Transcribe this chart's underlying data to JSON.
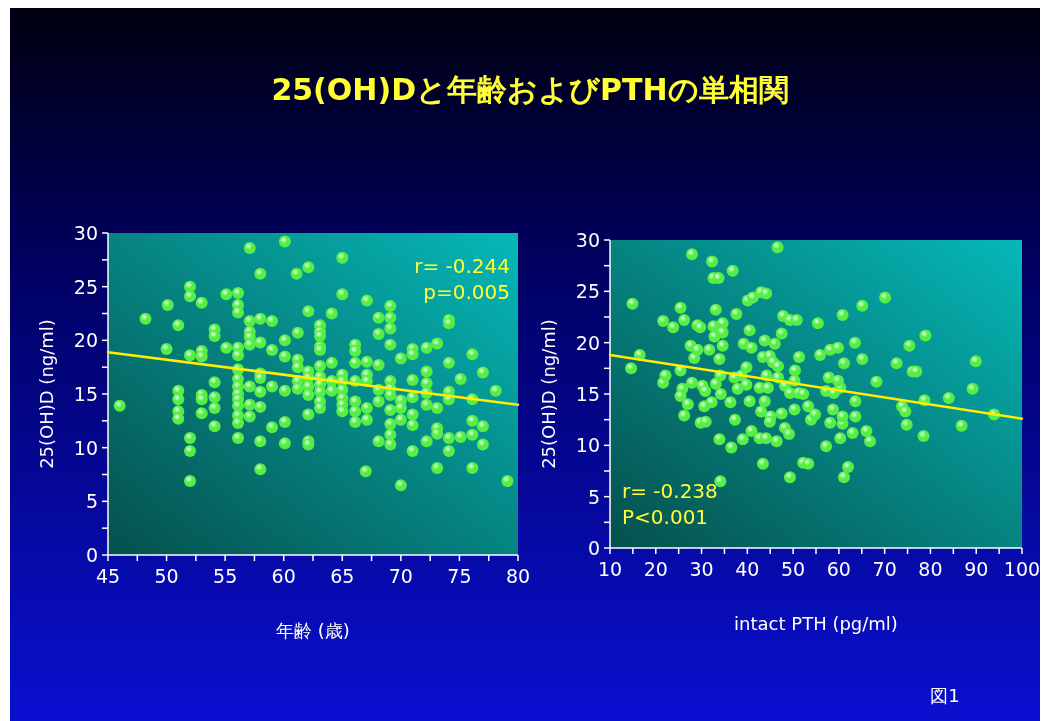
{
  "chart_data": [
    {
      "type": "scatter",
      "title": "25(OH)Dと年齢およびPTHの単相関",
      "xlabel": "年齢 (歳)",
      "ylabel": "25(OH)D (ng/ml)",
      "xlim": [
        45,
        80
      ],
      "xticks": [
        45,
        {
          "value": 47.5,
          "label": null
        },
        50,
        {
          "value": 52.5,
          "label": null
        },
        55,
        {
          "value": 57.5,
          "label": null
        },
        60,
        {
          "value": 62.5,
          "label": null
        },
        65,
        {
          "value": 67.5,
          "label": null
        },
        70,
        {
          "value": 72.5,
          "label": null
        },
        75,
        {
          "value": 77.5,
          "label": null
        },
        80
      ],
      "ylim": [
        0,
        30
      ],
      "yticks": [
        0,
        {
          "value": 2.5,
          "label": null
        },
        5,
        {
          "value": 7.5,
          "label": null
        },
        10,
        {
          "value": 12.5,
          "label": null
        },
        15,
        {
          "value": 17.5,
          "label": null
        },
        20,
        {
          "value": 22.5,
          "label": null
        },
        25,
        {
          "value": 27.5,
          "label": null
        },
        30
      ],
      "grid": false,
      "annotations": [
        "r= -0.244",
        "p=0.005"
      ],
      "series": [
        {
          "marker": "circle",
          "color": "#55ee44",
          "x": [
            46,
            48.2,
            50.1,
            50,
            51,
            51,
            51,
            51,
            51,
            52,
            52,
            52,
            52,
            52,
            52,
            53,
            53,
            53,
            53,
            53,
            53,
            54.1,
            54.1,
            54.1,
            54.1,
            54.1,
            54.1,
            55.1,
            55.1,
            56.1,
            56.1,
            56.1,
            56.1,
            56.1,
            56.1,
            56.1,
            56.1,
            56.1,
            56.1,
            56.1,
            56.1,
            56.1,
            56.1,
            57.1,
            57.1,
            57.1,
            57.1,
            57.1,
            57.1,
            57.1,
            57.1,
            58,
            58,
            58,
            58,
            58,
            58,
            58,
            58,
            58,
            59,
            59,
            59,
            59,
            60.1,
            60.1,
            60.1,
            60.1,
            60.1,
            60.1,
            61.1,
            61.2,
            61.2,
            61.2,
            61.2,
            61.2,
            62.1,
            62.1,
            62.1,
            62.1,
            62.1,
            62.1,
            62.1,
            62.1,
            62.1,
            63.1,
            63.1,
            63.1,
            63.1,
            63.1,
            63.1,
            63.1,
            63.1,
            63.1,
            63.1,
            63.1,
            64.1,
            64.1,
            64.1,
            64.1,
            65,
            65,
            65,
            65,
            65,
            65,
            65,
            65,
            66.1,
            66.1,
            66.1,
            66.1,
            66.1,
            66.1,
            66.1,
            67.1,
            67.1,
            67.1,
            67.1,
            67.1,
            67.1,
            67,
            68.1,
            68.1,
            68.1,
            68.1,
            68.1,
            68.1,
            69.1,
            69.1,
            69.1,
            69.1,
            69.1,
            69.1,
            69.1,
            69.1,
            69.1,
            69.1,
            69.1,
            70,
            70,
            70,
            70,
            70,
            71,
            71,
            71,
            71,
            71,
            71,
            71,
            72.2,
            72.2,
            72.2,
            72.2,
            72.2,
            72.2,
            73.1,
            73.1,
            73.1,
            73.1,
            73.1,
            74.1,
            74.1,
            74.1,
            74.1,
            74.1,
            74.1,
            74.1,
            75.1,
            75.1,
            76.1,
            76.1,
            76.1,
            76.1,
            76.1,
            77,
            77,
            77,
            78.1,
            79.1
          ],
          "values": [
            13.9,
            22.0,
            23.3,
            19.2,
            21.4,
            15.3,
            14.5,
            13.4,
            12.7,
            25.0,
            24.1,
            18.6,
            10.9,
            9.7,
            6.9,
            23.5,
            19.0,
            18.5,
            14.9,
            14.5,
            13.2,
            21.0,
            20.4,
            16.1,
            14.7,
            13.7,
            12.0,
            24.3,
            19.3,
            24.4,
            23.3,
            22.6,
            19.3,
            18.6,
            17.3,
            16.4,
            15.7,
            15.0,
            14.5,
            13.9,
            13.0,
            12.3,
            10.9,
            28.6,
            21.8,
            20.8,
            20.3,
            19.6,
            15.7,
            14.0,
            12.9,
            26.2,
            22.0,
            19.8,
            16.9,
            16.5,
            15.2,
            13.8,
            10.6,
            8.0,
            21.8,
            19.1,
            15.7,
            11.9,
            29.2,
            20.0,
            18.5,
            15.3,
            12.4,
            10.4,
            26.2,
            18.2,
            17.5,
            16.2,
            15.5,
            20.7,
            26.8,
            22.7,
            17.1,
            16.5,
            15.7,
            14.9,
            13.1,
            10.6,
            10.3,
            21.4,
            20.8,
            20.4,
            19.4,
            19.1,
            17.6,
            16.6,
            15.9,
            15.2,
            14.3,
            13.7,
            22.5,
            17.9,
            16.2,
            15.3,
            27.7,
            24.3,
            16.8,
            16.2,
            15.4,
            14.6,
            14.0,
            13.4,
            19.6,
            19.0,
            17.9,
            16.2,
            14.3,
            13.4,
            12.4,
            23.7,
            18.0,
            16.8,
            16.2,
            13.7,
            12.6,
            7.8,
            22.1,
            20.6,
            17.7,
            15.4,
            14.3,
            10.6,
            23.2,
            22.1,
            21.1,
            19.6,
            16.2,
            15.5,
            14.9,
            13.5,
            12.2,
            11.2,
            10.3,
            18.3,
            14.4,
            13.7,
            12.6,
            6.5,
            19.2,
            18.7,
            16.3,
            14.7,
            13.1,
            12.1,
            9.7,
            19.3,
            17.1,
            16.0,
            15.1,
            14.0,
            10.6,
            19.7,
            13.7,
            11.8,
            11.3,
            8.1,
            21.9,
            21.6,
            17.9,
            15.2,
            14.5,
            10.9,
            9.7,
            16.4,
            11.0,
            18.7,
            14.5,
            12.5,
            11.2,
            8.1,
            17.0,
            12.0,
            10.3,
            15.3,
            6.9
          ]
        },
        {
          "type": "line",
          "color": "#ffee00",
          "x": [
            45,
            80
          ],
          "values": [
            18.9,
            14.0
          ]
        }
      ]
    },
    {
      "type": "scatter",
      "xlabel": "intact PTH (pg/ml)",
      "ylabel": "25(OH)D (ng/ml)",
      "xlim": [
        10,
        100
      ],
      "xticks": [
        10,
        {
          "value": 15,
          "label": null
        },
        20,
        {
          "value": 25,
          "label": null
        },
        30,
        {
          "value": 35,
          "label": null
        },
        40,
        {
          "value": 45,
          "label": null
        },
        50,
        {
          "value": 55,
          "label": null
        },
        60,
        {
          "value": 65,
          "label": null
        },
        70,
        {
          "value": 75,
          "label": null
        },
        80,
        {
          "value": 85,
          "label": null
        },
        90,
        {
          "value": 95,
          "label": null
        },
        100
      ],
      "ylim": [
        0,
        30
      ],
      "yticks": [
        0,
        {
          "value": 2.5,
          "label": null
        },
        5,
        {
          "value": 7.5,
          "label": null
        },
        10,
        {
          "value": 12.5,
          "label": null
        },
        15,
        {
          "value": 17.5,
          "label": null
        },
        20,
        {
          "value": 22.5,
          "label": null
        },
        25,
        {
          "value": 27.5,
          "label": null
        },
        30
      ],
      "grid": false,
      "annotations": [
        "r= -0.238",
        "P<0.001",
        "図1"
      ],
      "series": [
        {
          "marker": "circle",
          "color": "#55ee44",
          "x": [
            14.9,
            14.6,
            16.5,
            21.6,
            21.6,
            23.8,
            22.1,
            25.4,
            26.2,
            25.4,
            25.8,
            25.4,
            27.0,
            26.2,
            27.9,
            27.6,
            28.4,
            29.1,
            29.7,
            29.1,
            27.9,
            30.2,
            30.8,
            30.6,
            29.8,
            30.9,
            32.2,
            32.3,
            32.6,
            33.7,
            33.1,
            32.6,
            34.6,
            32.8,
            34.6,
            34.6,
            31.7,
            33.9,
            33.1,
            34.1,
            34.2,
            36.3,
            33.9,
            34.1,
            36.8,
            37.6,
            36.5,
            37.3,
            37.2,
            37.9,
            38.7,
            39.0,
            39.2,
            39.8,
            40.1,
            41.2,
            40.5,
            40.9,
            40.5,
            40.9,
            39.8,
            43.0,
            44.1,
            43.8,
            43.4,
            42.7,
            43.8,
            43.0,
            42.7,
            44.1,
            43.4,
            44.2,
            44.5,
            46.6,
            46.0,
            44.9,
            45.6,
            46.7,
            45.1,
            44.9,
            46.4,
            46.7,
            47.5,
            47.8,
            47.5,
            49.3,
            50.8,
            48.2,
            48.2,
            49.1,
            49.3,
            49.3,
            50.3,
            50.4,
            51.3,
            51.2,
            50.3,
            52.2,
            53.3,
            53.9,
            54.8,
            52.2,
            53.3,
            55.4,
            55.9,
            58.1,
            59.8,
            57.8,
            57.2,
            58.9,
            60.3,
            59.8,
            58.7,
            58.1,
            57.2,
            60.3,
            60.8,
            60.8,
            60.8,
            61.1,
            62.0,
            61.1,
            63.0,
            63.6,
            63.6,
            63.5,
            65.1,
            65.1,
            66.0,
            66.8,
            68.2,
            70.1,
            72.6,
            73.8,
            74.5,
            74.8,
            75.4,
            76.1,
            76.9,
            78.9,
            78.7,
            78.5,
            84.0,
            86.8,
            89.2,
            89.9,
            93.9
          ],
          "values": [
            23.8,
            17.5,
            18.8,
            22.1,
            16.1,
            21.5,
            16.8,
            23.4,
            22.2,
            17.3,
            15.5,
            14.8,
            14.0,
            12.9,
            28.6,
            19.7,
            18.5,
            21.7,
            21.5,
            19.3,
            16.1,
            15.8,
            15.3,
            13.8,
            12.2,
            12.3,
            14.2,
            27.9,
            26.3,
            26.3,
            23.2,
            21.6,
            21.9,
            20.6,
            21.0,
            19.7,
            19.3,
            18.4,
            16.0,
            16.8,
            15.0,
            14.2,
            10.6,
            6.5,
            27.0,
            22.8,
            9.8,
            12.5,
            16.6,
            15.5,
            16.8,
            10.6,
            19.9,
            17.6,
            24.1,
            24.4,
            21.2,
            19.5,
            14.3,
            11.4,
            15.9,
            24.9,
            24.8,
            20.2,
            18.6,
            15.6,
            14.3,
            13.3,
            10.7,
            10.7,
            8.2,
            16.8,
            15.6,
            29.3,
            19.9,
            18.7,
            18.1,
            17.7,
            12.8,
            12.3,
            10.4,
            16.6,
            13.1,
            22.6,
            20.9,
            22.2,
            22.2,
            15.8,
            11.7,
            11.1,
            6.9,
            15.1,
            16.3,
            17.3,
            18.6,
            15.1,
            13.5,
            15.0,
            13.8,
            12.5,
            13.0,
            8.3,
            8.2,
            21.9,
            18.8,
            19.3,
            19.5,
            16.6,
            15.3,
            15.1,
            15.6,
            16.3,
            13.5,
            12.2,
            9.9,
            10.7,
            12.1,
            12.8,
            22.7,
            18.0,
            7.9,
            6.9,
            11.2,
            12.8,
            14.3,
            20.0,
            23.6,
            18.4,
            11.4,
            10.4,
            16.2,
            24.4,
            18.0,
            13.8,
            13.3,
            12.0,
            19.7,
            17.2,
            17.2,
            20.7,
            14.4,
            10.9,
            14.6,
            11.9,
            15.5,
            18.2,
            13.0
          ]
        },
        {
          "type": "line",
          "color": "#ffee00",
          "x": [
            10,
            100
          ],
          "values": [
            18.8,
            12.6
          ]
        }
      ]
    }
  ]
}
